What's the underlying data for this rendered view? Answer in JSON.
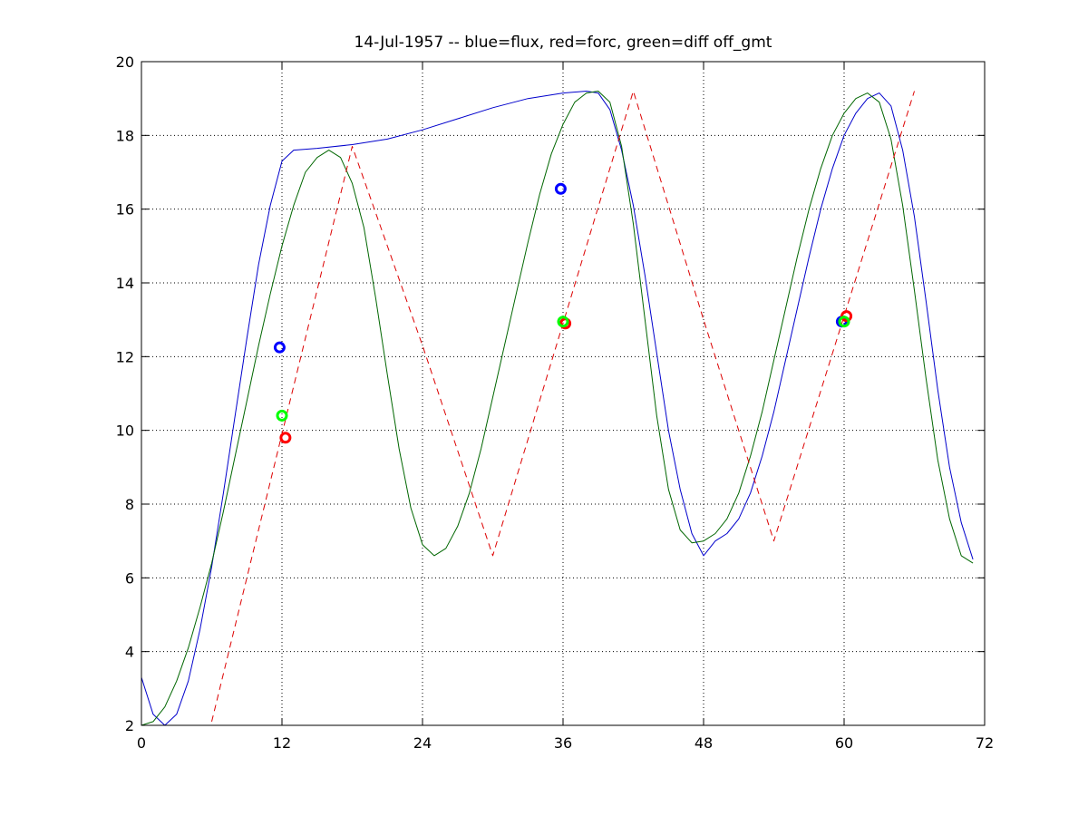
{
  "chart_data": {
    "type": "line",
    "title": "14-Jul-1957 -- blue=flux, red=forc, green=diff off_gmt",
    "xlabel": "",
    "ylabel": "",
    "xlim": [
      0,
      72
    ],
    "ylim": [
      2,
      20
    ],
    "x_ticks": [
      "0",
      "12",
      "24",
      "36",
      "48",
      "60",
      "72"
    ],
    "y_ticks": [
      "2",
      "4",
      "6",
      "8",
      "10",
      "12",
      "14",
      "16",
      "18",
      "20"
    ],
    "grid": true,
    "colors": {
      "blue": "#0000cc",
      "red": "#dd0000",
      "green": "#006600",
      "marker_blue": "#0000ff",
      "marker_red": "#ff0000",
      "marker_green": "#00ff00"
    },
    "series": [
      {
        "name": "flux",
        "color": "blue",
        "style": "solid",
        "points": [
          [
            0,
            3.3
          ],
          [
            1,
            2.3
          ],
          [
            2,
            2.0
          ],
          [
            3,
            2.3
          ],
          [
            4,
            3.2
          ],
          [
            5,
            4.6
          ],
          [
            6,
            6.3
          ],
          [
            7,
            8.3
          ],
          [
            8,
            10.4
          ],
          [
            9,
            12.5
          ],
          [
            10,
            14.5
          ],
          [
            11,
            16.1
          ],
          [
            12,
            17.3
          ],
          [
            13,
            17.6
          ],
          [
            15,
            17.65
          ],
          [
            18,
            17.75
          ],
          [
            21,
            17.9
          ],
          [
            24,
            18.15
          ],
          [
            27,
            18.45
          ],
          [
            30,
            18.75
          ],
          [
            33,
            19.0
          ],
          [
            36,
            19.15
          ],
          [
            38,
            19.2
          ],
          [
            39,
            19.15
          ],
          [
            40,
            18.7
          ],
          [
            41,
            17.6
          ],
          [
            42,
            16.1
          ],
          [
            43,
            14.2
          ],
          [
            44,
            12.1
          ],
          [
            45,
            10.0
          ],
          [
            46,
            8.4
          ],
          [
            47,
            7.2
          ],
          [
            48,
            6.6
          ],
          [
            49,
            7.0
          ],
          [
            50,
            7.2
          ],
          [
            51,
            7.6
          ],
          [
            52,
            8.3
          ],
          [
            53,
            9.3
          ],
          [
            54,
            10.5
          ],
          [
            55,
            11.9
          ],
          [
            56,
            13.3
          ],
          [
            57,
            14.7
          ],
          [
            58,
            16.0
          ],
          [
            59,
            17.1
          ],
          [
            60,
            18.0
          ],
          [
            61,
            18.6
          ],
          [
            62,
            19.0
          ],
          [
            63,
            19.15
          ],
          [
            64,
            18.8
          ],
          [
            65,
            17.6
          ],
          [
            66,
            15.8
          ],
          [
            67,
            13.5
          ],
          [
            68,
            11.1
          ],
          [
            69,
            9.0
          ],
          [
            70,
            7.5
          ],
          [
            71,
            6.5
          ]
        ]
      },
      {
        "name": "diff",
        "color": "green",
        "style": "solid",
        "points": [
          [
            0,
            2.0
          ],
          [
            1,
            2.1
          ],
          [
            2,
            2.5
          ],
          [
            3,
            3.2
          ],
          [
            4,
            4.1
          ],
          [
            5,
            5.2
          ],
          [
            6,
            6.4
          ],
          [
            7,
            7.8
          ],
          [
            8,
            9.3
          ],
          [
            9,
            10.8
          ],
          [
            10,
            12.3
          ],
          [
            11,
            13.7
          ],
          [
            12,
            15.0
          ],
          [
            13,
            16.1
          ],
          [
            14,
            17.0
          ],
          [
            15,
            17.4
          ],
          [
            16,
            17.6
          ],
          [
            17,
            17.4
          ],
          [
            18,
            16.7
          ],
          [
            19,
            15.5
          ],
          [
            20,
            13.6
          ],
          [
            21,
            11.5
          ],
          [
            22,
            9.5
          ],
          [
            23,
            7.9
          ],
          [
            24,
            6.9
          ],
          [
            25,
            6.6
          ],
          [
            26,
            6.8
          ],
          [
            27,
            7.4
          ],
          [
            28,
            8.3
          ],
          [
            29,
            9.5
          ],
          [
            30,
            10.9
          ],
          [
            31,
            12.3
          ],
          [
            32,
            13.7
          ],
          [
            33,
            15.1
          ],
          [
            34,
            16.4
          ],
          [
            35,
            17.5
          ],
          [
            36,
            18.3
          ],
          [
            37,
            18.9
          ],
          [
            38,
            19.15
          ],
          [
            39,
            19.2
          ],
          [
            40,
            18.9
          ],
          [
            41,
            17.7
          ],
          [
            42,
            15.6
          ],
          [
            43,
            13.0
          ],
          [
            44,
            10.4
          ],
          [
            45,
            8.4
          ],
          [
            46,
            7.3
          ],
          [
            47,
            6.95
          ],
          [
            48,
            7.0
          ],
          [
            49,
            7.2
          ],
          [
            50,
            7.6
          ],
          [
            51,
            8.3
          ],
          [
            52,
            9.3
          ],
          [
            53,
            10.5
          ],
          [
            54,
            11.9
          ],
          [
            55,
            13.3
          ],
          [
            56,
            14.7
          ],
          [
            57,
            16.0
          ],
          [
            58,
            17.1
          ],
          [
            59,
            18.0
          ],
          [
            60,
            18.6
          ],
          [
            61,
            19.0
          ],
          [
            62,
            19.15
          ],
          [
            63,
            18.9
          ],
          [
            64,
            17.9
          ],
          [
            65,
            16.1
          ],
          [
            66,
            13.8
          ],
          [
            67,
            11.4
          ],
          [
            68,
            9.2
          ],
          [
            69,
            7.6
          ],
          [
            70,
            6.6
          ],
          [
            71,
            6.4
          ]
        ]
      },
      {
        "name": "forc",
        "color": "red",
        "style": "dashed",
        "points": [
          [
            6,
            2.1
          ],
          [
            18,
            17.7
          ],
          [
            24,
            12.3
          ],
          [
            30,
            6.6
          ],
          [
            42,
            19.2
          ],
          [
            48,
            13.0
          ],
          [
            54,
            7.0
          ],
          [
            66,
            19.2
          ]
        ]
      }
    ],
    "markers": [
      {
        "series": "flux",
        "color": "blue",
        "x": 11.8,
        "y": 12.25
      },
      {
        "series": "diff",
        "color": "green",
        "x": 12.0,
        "y": 10.4
      },
      {
        "series": "forc",
        "color": "red",
        "x": 12.3,
        "y": 9.8
      },
      {
        "series": "flux",
        "color": "blue",
        "x": 35.8,
        "y": 16.55
      },
      {
        "series": "forc",
        "color": "red",
        "x": 36.2,
        "y": 12.9
      },
      {
        "series": "diff",
        "color": "green",
        "x": 36.0,
        "y": 12.95
      },
      {
        "series": "flux",
        "color": "blue",
        "x": 59.8,
        "y": 12.95
      },
      {
        "series": "forc",
        "color": "red",
        "x": 60.2,
        "y": 13.1
      },
      {
        "series": "diff",
        "color": "green",
        "x": 60.0,
        "y": 12.95
      }
    ]
  }
}
